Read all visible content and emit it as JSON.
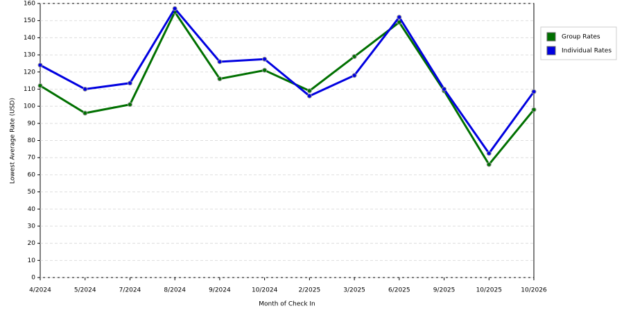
{
  "chart_data": {
    "type": "line",
    "x_label": "Month of Check In",
    "y_label": "Lowest Average Rate (USD)",
    "categories": [
      "4/2024",
      "5/2024",
      "7/2024",
      "8/2024",
      "9/2024",
      "10/2024",
      "2/2025",
      "3/2025",
      "6/2025",
      "9/2025",
      "10/2025",
      "10/2026"
    ],
    "series": [
      {
        "name": "Group Rates",
        "color": "#007000",
        "values": [
          112,
          96,
          101,
          155,
          116,
          121,
          109,
          129,
          149,
          109,
          66,
          98
        ]
      },
      {
        "name": "Individual Rates",
        "color": "#0000e0",
        "values": [
          124,
          110,
          113.5,
          157,
          126,
          127.5,
          106,
          118,
          152,
          110,
          72.5,
          108.5
        ]
      }
    ],
    "ylim": [
      0,
      160
    ],
    "yticks": [
      0,
      10,
      20,
      30,
      40,
      50,
      60,
      70,
      80,
      90,
      100,
      110,
      120,
      130,
      140,
      150,
      160
    ],
    "grid": true,
    "legend": "right"
  }
}
